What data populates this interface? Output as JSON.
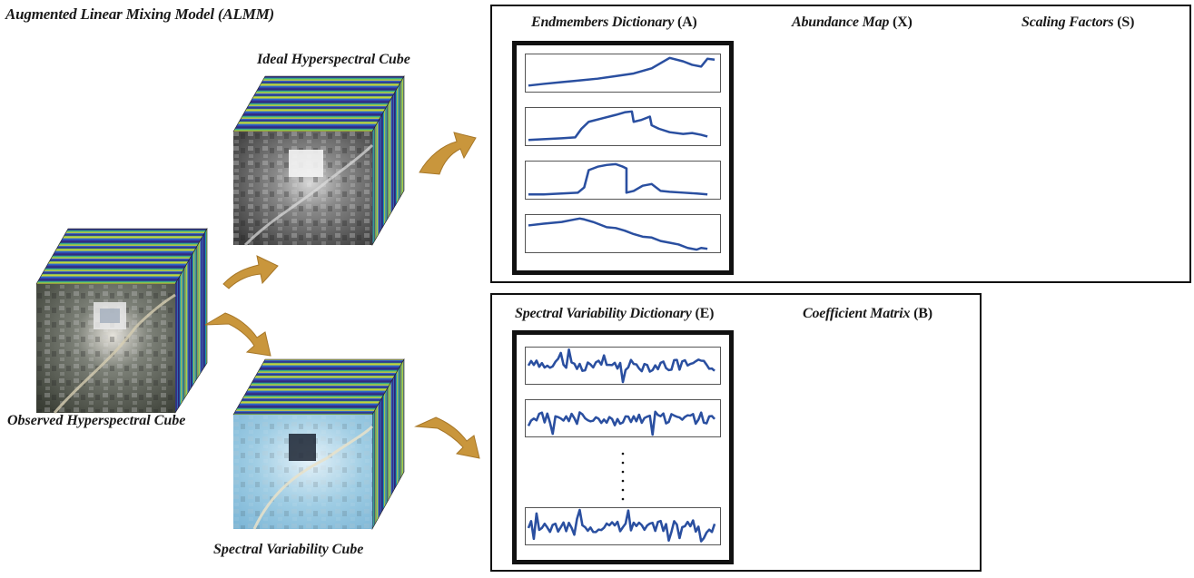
{
  "title": "Augmented Linear Mixing Model (ALMM)",
  "cubes": {
    "observed_label": "Observed Hyperspectral Cube",
    "ideal_label": "Ideal Hyperspectral Cube",
    "variability_label": "Spectral Variability Cube"
  },
  "top_panel": {
    "endmembers_title": "Endmembers Dictionary",
    "endmembers_symbol": "(A)",
    "abundance_title": "Abundance Map",
    "abundance_symbol": "(X)",
    "scaling_title": "Scaling Factors",
    "scaling_symbol": "(S)"
  },
  "bottom_panel": {
    "variability_title": "Spectral Variability Dictionary",
    "variability_symbol": "(E)",
    "coefficient_title": "Coefficient Matrix",
    "coefficient_symbol": "(B)"
  },
  "colors": {
    "arrow": "#c9963c",
    "curve": "#2a4fa0",
    "jet_dark": "#0a1f78",
    "jet_mid": "#1e8bd6",
    "jet_hot": "#e8421e",
    "coef_orange": "#f05a22",
    "coef_cyan": "#56c7d4"
  }
}
